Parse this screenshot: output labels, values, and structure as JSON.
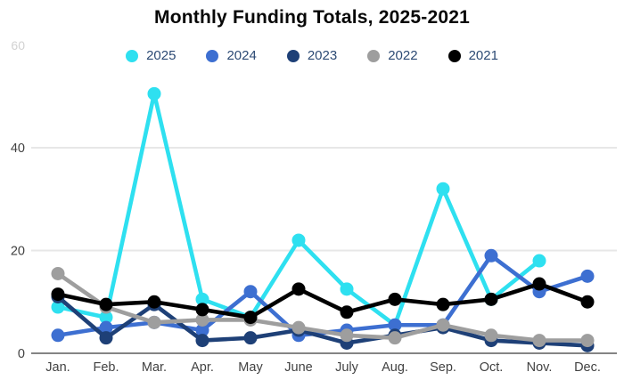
{
  "title": "Monthly Funding Totals, 2025-2021",
  "legend": [
    {
      "label": "2025",
      "color": "#2ee0f0"
    },
    {
      "label": "2024",
      "color": "#3d6fd1"
    },
    {
      "label": "2023",
      "color": "#1e4077"
    },
    {
      "label": "2022",
      "color": "#9e9e9e"
    },
    {
      "label": "2021",
      "color": "#000000"
    }
  ],
  "axis": {
    "yticklabels": [
      "0",
      "20",
      "40"
    ],
    "partial_top_label": "60",
    "label_color": "#424242",
    "gridline_color": "#e7e7e7",
    "axisline_color": "#848484"
  },
  "chart_data": {
    "type": "line",
    "title": "Monthly Funding Totals, 2025-2021",
    "xlabel": "",
    "ylabel": "",
    "categories": [
      "Jan.",
      "Feb.",
      "Mar.",
      "Apr.",
      "May",
      "June",
      "July",
      "Aug.",
      "Sep.",
      "Oct.",
      "Nov.",
      "Dec."
    ],
    "yticks": [
      0,
      20,
      40
    ],
    "ylim": [
      0,
      55
    ],
    "grid": true,
    "legend_position": "top",
    "series": [
      {
        "name": "2025",
        "color": "#2ee0f0",
        "values": [
          9,
          7,
          50.5,
          10.5,
          7,
          22,
          12.5,
          5.5,
          32,
          10.5,
          18,
          null
        ]
      },
      {
        "name": "2024",
        "color": "#3d6fd1",
        "values": [
          3.5,
          5,
          6,
          4.5,
          12,
          3.5,
          4.5,
          5.5,
          5.5,
          19,
          12,
          15
        ]
      },
      {
        "name": "2023",
        "color": "#1e4077",
        "values": [
          11,
          3,
          9.5,
          2.5,
          3,
          4.5,
          2,
          3.5,
          5,
          2.5,
          2,
          1.5
        ]
      },
      {
        "name": "2022",
        "color": "#9e9e9e",
        "values": [
          15.5,
          9,
          6,
          6.5,
          6.5,
          5,
          3.5,
          3,
          5.5,
          3.5,
          2.5,
          2.5
        ]
      },
      {
        "name": "2021",
        "color": "#000000",
        "values": [
          11.5,
          9.5,
          10,
          8.5,
          7,
          12.5,
          8,
          10.5,
          9.5,
          10.5,
          13.5,
          10
        ]
      }
    ]
  }
}
